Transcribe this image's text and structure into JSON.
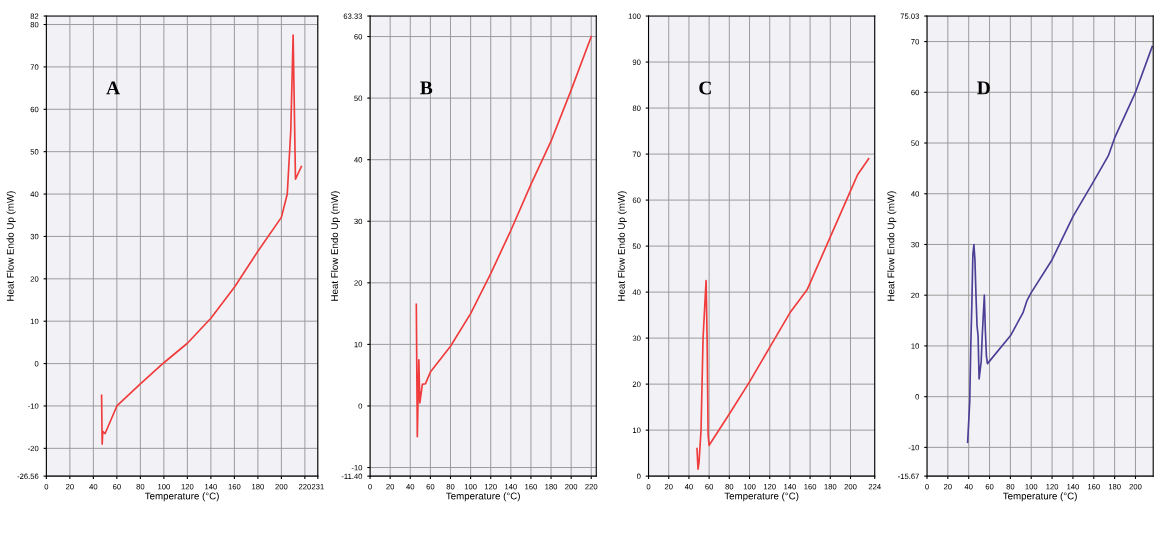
{
  "chart_data": [
    {
      "type": "line",
      "xlabel": "Temperature (°C)",
      "ylabel": "Heat Flow Endo Up (mW)",
      "annotations": [
        "A"
      ],
      "grid": true,
      "line_style": "solid",
      "xlim": [
        0,
        231
      ],
      "xticks": [
        0,
        20,
        40,
        60,
        80,
        100,
        120,
        140,
        160,
        180,
        200,
        220,
        231
      ],
      "ylim": [
        -26.56,
        82
      ],
      "yticks": [
        -26.56,
        -20,
        -10,
        0,
        10,
        20,
        30,
        40,
        50,
        60,
        70,
        80,
        82
      ],
      "series": [
        {
          "color": "#f03c3c",
          "x": [
            47,
            47.5,
            48,
            50,
            60,
            80,
            100,
            120,
            140,
            160,
            180,
            200,
            205,
            208,
            210,
            212,
            217
          ],
          "values": [
            -7.5,
            -19,
            -16,
            -16.5,
            -10,
            -4.8,
            0.2,
            4.8,
            10.7,
            18,
            26.5,
            34.5,
            40,
            55,
            77.5,
            43.5,
            46.5
          ]
        }
      ]
    },
    {
      "type": "line",
      "xlabel": "Temperature (°C)",
      "ylabel": "Heat Flow Endo Up (mW)",
      "annotations": [
        "B"
      ],
      "grid": true,
      "line_style": "solid",
      "xlim": [
        0,
        225
      ],
      "xticks": [
        0,
        20,
        40,
        60,
        80,
        100,
        120,
        140,
        160,
        180,
        200,
        220
      ],
      "ylim": [
        -11.4,
        63.33
      ],
      "yticks": [
        {
          "value": -11.4,
          "label": "-11.40"
        },
        -10,
        0,
        10,
        20,
        30,
        40,
        50,
        60,
        63.33
      ],
      "series": [
        {
          "color": "#f03c3c",
          "x": [
            46,
            47,
            48.5,
            49.5,
            52,
            55,
            60,
            80,
            100,
            120,
            140,
            160,
            180,
            200,
            220
          ],
          "values": [
            16.5,
            -5,
            7.5,
            0.5,
            3.5,
            3.6,
            5.5,
            9.7,
            15,
            21.5,
            28.5,
            36,
            43,
            51.3,
            60
          ]
        }
      ]
    },
    {
      "type": "line",
      "xlabel": "Temperature (°C)",
      "ylabel": "Heat Flow Endo Up (mW)",
      "annotations": [
        "C"
      ],
      "grid": true,
      "line_style": "solid",
      "xlim": [
        0,
        224
      ],
      "xticks": [
        0,
        20,
        40,
        60,
        80,
        100,
        120,
        140,
        160,
        180,
        200,
        224
      ],
      "ylim": [
        0,
        100
      ],
      "yticks": [
        0,
        10,
        20,
        30,
        40,
        50,
        60,
        70,
        80,
        90,
        100
      ],
      "series": [
        {
          "color": "#f03c3c",
          "x": [
            48,
            49,
            50,
            52,
            54,
            57,
            58,
            59,
            60,
            80,
            100,
            120,
            140,
            157,
            180,
            200,
            207,
            218
          ],
          "values": [
            6,
            1.5,
            3,
            10,
            30,
            42.5,
            30,
            9,
            6.7,
            13.5,
            20.5,
            28,
            35.5,
            40.5,
            52,
            62,
            65.5,
            69
          ]
        }
      ]
    },
    {
      "type": "line",
      "xlabel": "Temperature (°C)",
      "ylabel": "Heat Flow Endo Up (mW)",
      "annotations": [
        "D"
      ],
      "grid": true,
      "line_style": "solid",
      "xlim": [
        0,
        217
      ],
      "xticks": [
        0,
        20,
        40,
        60,
        80,
        100,
        120,
        140,
        160,
        180,
        200
      ],
      "ylim": [
        -15.67,
        75.03
      ],
      "yticks": [
        -15.67,
        -10,
        0,
        10,
        20,
        30,
        40,
        50,
        60,
        70,
        75.03
      ],
      "series": [
        {
          "color": "#4b3f96",
          "x": [
            39,
            41,
            42,
            43,
            44,
            45,
            46,
            47,
            48,
            49,
            50,
            52,
            53,
            55,
            56,
            57,
            58,
            60,
            80,
            92,
            96,
            100,
            120,
            140,
            160,
            174,
            180,
            200,
            216
          ],
          "values": [
            -9,
            -1,
            10,
            18,
            28,
            30,
            27,
            20,
            14,
            12,
            3.5,
            7,
            12,
            20,
            13,
            8,
            6.5,
            7,
            12,
            16.5,
            19,
            20.5,
            27,
            35.5,
            42.5,
            47.5,
            51,
            60,
            69
          ]
        }
      ]
    }
  ]
}
